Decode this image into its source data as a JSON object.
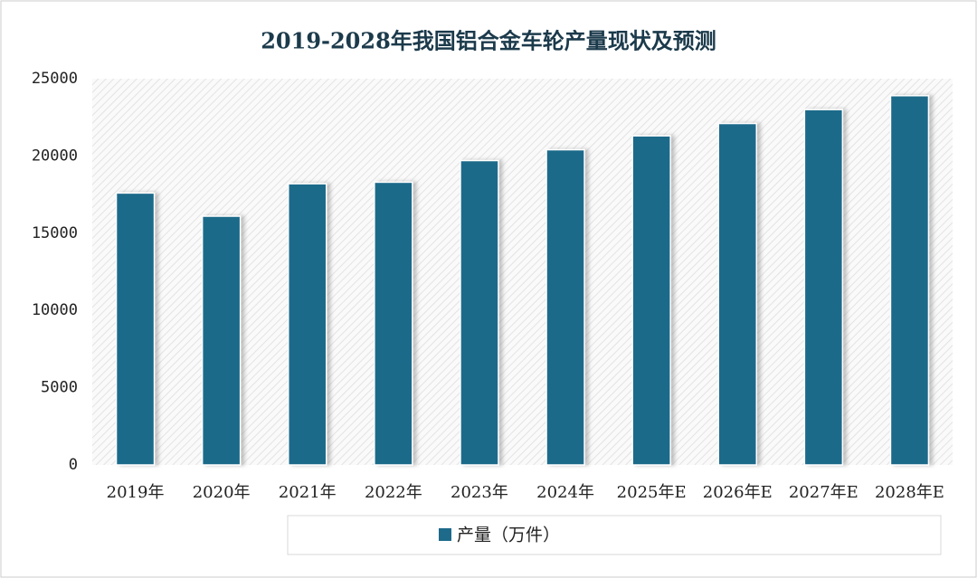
{
  "chart_data": {
    "type": "bar",
    "title": "2019-2028年我国铝合金车轮产量现状及预测",
    "categories": [
      "2019年",
      "2020年",
      "2021年",
      "2022年",
      "2023年",
      "2024年",
      "2025年E",
      "2026年E",
      "2027年E",
      "2028年E"
    ],
    "series": [
      {
        "name": "产量（万件）",
        "color": "#1d6a8a",
        "values": [
          17600,
          16100,
          18200,
          18300,
          19700,
          20400,
          21300,
          22100,
          23000,
          23900
        ]
      }
    ],
    "ylim": [
      0,
      25000
    ],
    "yticks": [
      0,
      5000,
      10000,
      15000,
      20000,
      25000
    ],
    "grid": false,
    "legend": "bottom"
  }
}
